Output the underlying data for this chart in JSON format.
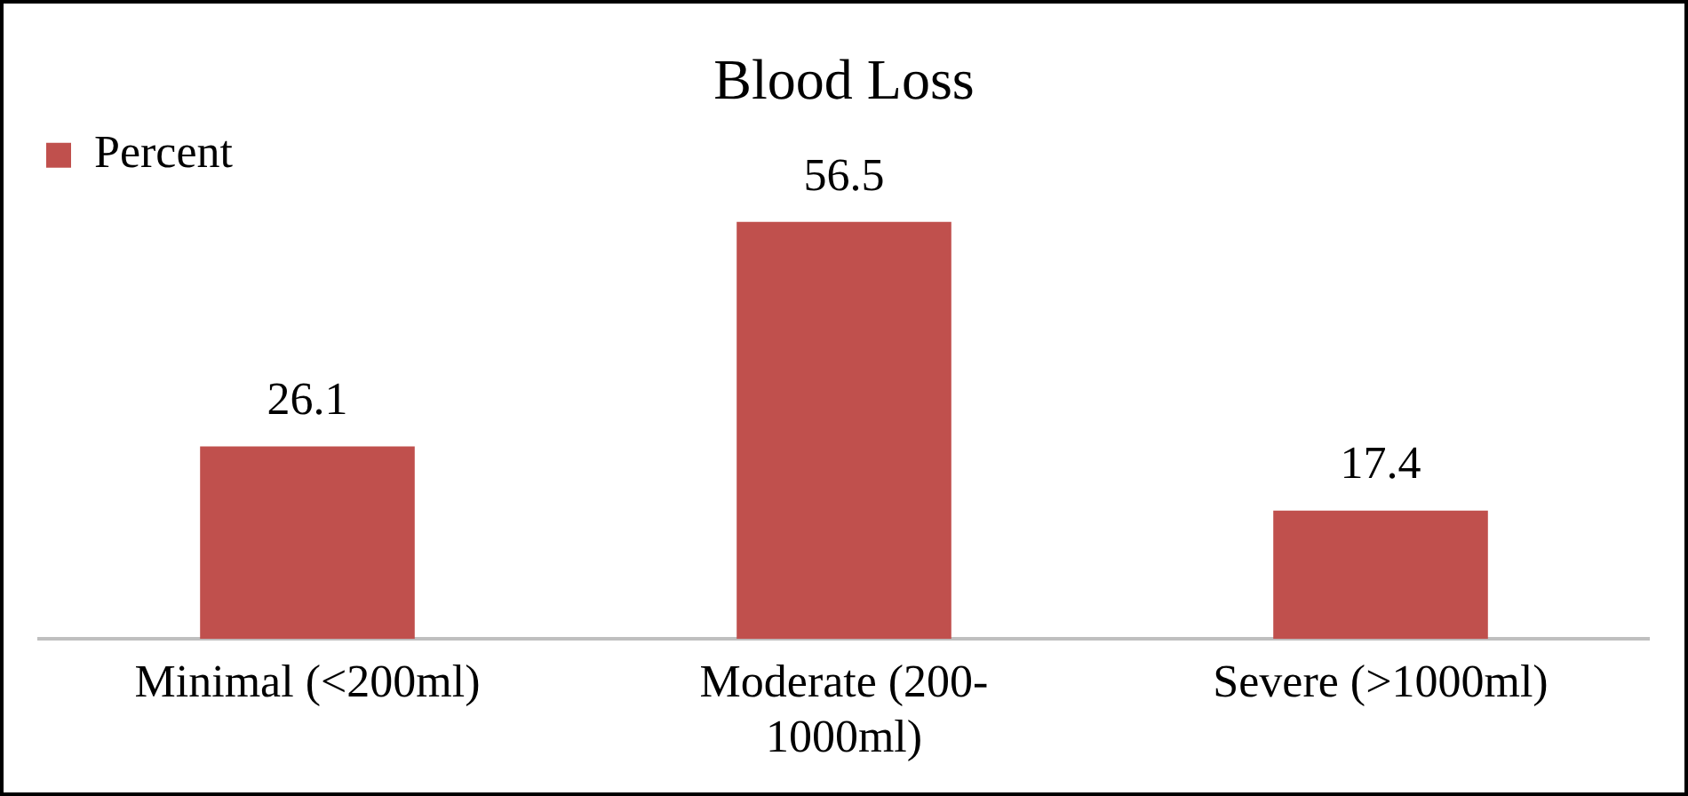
{
  "chart_data": {
    "type": "bar",
    "title": "Blood Loss",
    "categories": [
      "Minimal (<200ml)",
      "Moderate (200-1000ml)",
      "Severe (>1000ml)"
    ],
    "series": [
      {
        "name": "Percent",
        "color": "#c0504d",
        "values": [
          26.1,
          56.5,
          17.4
        ]
      }
    ],
    "tick_labels": "x",
    "data_labels": true,
    "legend": "top left",
    "grid": false
  }
}
